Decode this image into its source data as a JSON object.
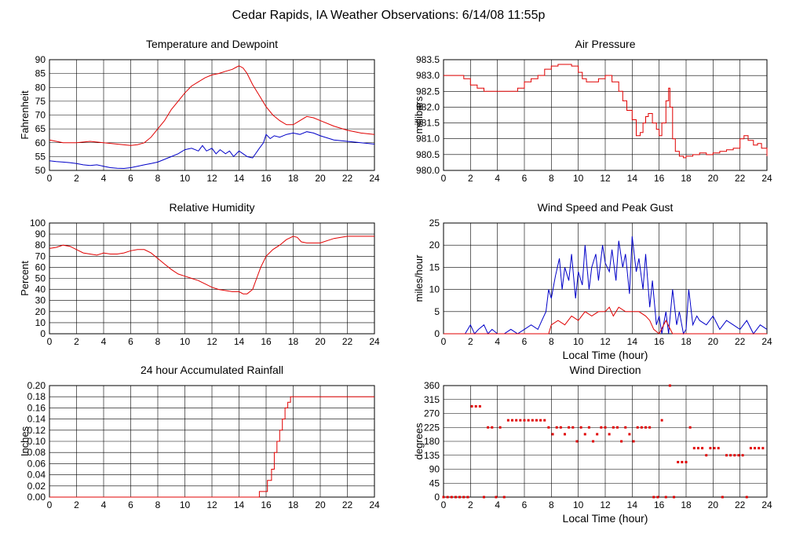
{
  "page_title": "Cedar Rapids, IA Weather Observations: 6/14/08 11:55p",
  "colors": {
    "red": "#e00000",
    "blue": "#0000c8",
    "grid": "#000000",
    "axis": "#000000"
  },
  "chart_data": [
    {
      "id": "temp",
      "type": "line",
      "title": "Temperature and Dewpoint",
      "ylabel": "Fahrenheit",
      "xlabel": "",
      "xlim": [
        0,
        24
      ],
      "ylim": [
        50,
        90
      ],
      "xticks": [
        0,
        2,
        4,
        6,
        8,
        10,
        12,
        14,
        16,
        18,
        20,
        22,
        24
      ],
      "yticks": [
        "50",
        "55",
        "60",
        "65",
        "70",
        "75",
        "80",
        "85",
        "90"
      ],
      "series": [
        {
          "color": "red",
          "step": false,
          "x": [
            0,
            1,
            2,
            3,
            4,
            5,
            6,
            6.5,
            7,
            7.5,
            8,
            8.5,
            9,
            9.5,
            10,
            10.5,
            11,
            11.5,
            12,
            12.5,
            13,
            13.5,
            13.8,
            14,
            14.3,
            14.6,
            15,
            15.5,
            16,
            16.5,
            17,
            17.5,
            18,
            18.5,
            19,
            19.5,
            20,
            21,
            22,
            23,
            24
          ],
          "y": [
            61,
            60,
            60,
            60.5,
            60,
            59.5,
            59,
            59.3,
            60,
            62,
            65,
            68,
            72,
            75,
            78,
            80.5,
            82,
            83.5,
            84.5,
            85,
            85.8,
            86.5,
            87.3,
            87.8,
            87,
            85,
            81,
            77,
            73,
            70,
            68,
            66.5,
            66.5,
            68,
            69.5,
            69,
            68,
            66,
            64.5,
            63.5,
            63
          ]
        },
        {
          "color": "blue",
          "step": false,
          "x": [
            0,
            0.5,
            1,
            1.5,
            2,
            2.5,
            3,
            3.5,
            4,
            4.5,
            5,
            5.5,
            6,
            6.5,
            7,
            7.5,
            8,
            8.5,
            9,
            9.5,
            10,
            10.5,
            11,
            11.3,
            11.6,
            12,
            12.3,
            12.6,
            13,
            13.3,
            13.6,
            14,
            14.3,
            14.6,
            15,
            15.5,
            15.8,
            16,
            16.3,
            16.6,
            17,
            17.5,
            18,
            18.5,
            19,
            19.5,
            20,
            21,
            22,
            23,
            24
          ],
          "y": [
            53.5,
            53.2,
            53,
            52.8,
            52.5,
            52,
            51.8,
            52,
            51.5,
            51,
            50.8,
            50.7,
            51,
            51.5,
            52,
            52.5,
            53,
            54,
            55,
            56,
            57.5,
            58,
            57,
            59,
            57,
            58,
            56,
            57.5,
            56,
            57,
            55,
            57,
            56,
            55,
            54.5,
            58,
            60,
            63,
            61.5,
            62.5,
            62,
            63,
            63.5,
            63,
            64,
            63.5,
            62.5,
            61,
            60.5,
            60,
            59.5
          ]
        }
      ]
    },
    {
      "id": "pres",
      "type": "line",
      "title": "Air Pressure",
      "ylabel": "millibars",
      "xlabel": "",
      "xlim": [
        0,
        24
      ],
      "ylim": [
        980.0,
        983.5
      ],
      "xticks": [
        0,
        2,
        4,
        6,
        8,
        10,
        12,
        14,
        16,
        18,
        20,
        22,
        24
      ],
      "yticks": [
        "980.0",
        "980.5",
        "981.0",
        "981.5",
        "982.0",
        "982.5",
        "983.0",
        "983.5"
      ],
      "series": [
        {
          "color": "red",
          "step": true,
          "x": [
            0,
            0.5,
            1,
            1.5,
            2,
            2.5,
            3,
            3.5,
            4,
            4.5,
            5,
            5.5,
            6,
            6.5,
            7,
            7.5,
            8,
            8.5,
            9,
            9.5,
            10,
            10.3,
            10.6,
            11,
            11.5,
            12,
            12.5,
            13,
            13.3,
            13.6,
            14,
            14.3,
            14.6,
            14.8,
            15,
            15.2,
            15.5,
            15.8,
            16,
            16.2,
            16.5,
            16.7,
            16.8,
            17,
            17.2,
            17.5,
            17.8,
            18,
            18.5,
            19,
            19.5,
            20,
            20.5,
            21,
            21.5,
            22,
            22.3,
            22.6,
            23,
            23.3,
            23.6,
            24
          ],
          "y": [
            983.0,
            983.0,
            983.0,
            982.9,
            982.7,
            982.6,
            982.5,
            982.5,
            982.5,
            982.5,
            982.5,
            982.6,
            982.8,
            982.9,
            983.0,
            983.2,
            983.3,
            983.35,
            983.35,
            983.3,
            983.1,
            982.9,
            982.8,
            982.8,
            982.9,
            983.0,
            982.8,
            982.5,
            982.2,
            981.9,
            981.6,
            981.1,
            981.2,
            981.5,
            981.7,
            981.8,
            981.5,
            981.3,
            981.1,
            981.5,
            982.2,
            982.6,
            982.0,
            981.0,
            980.6,
            980.45,
            980.4,
            980.45,
            980.5,
            980.55,
            980.5,
            980.55,
            980.6,
            980.65,
            980.7,
            981.0,
            981.1,
            980.95,
            980.8,
            980.85,
            980.7,
            980.45
          ]
        }
      ]
    },
    {
      "id": "rh",
      "type": "line",
      "title": "Relative Humidity",
      "ylabel": "Percent",
      "xlabel": "",
      "xlim": [
        0,
        24
      ],
      "ylim": [
        0,
        100
      ],
      "xticks": [
        0,
        2,
        4,
        6,
        8,
        10,
        12,
        14,
        16,
        18,
        20,
        22,
        24
      ],
      "yticks": [
        "0",
        "10",
        "20",
        "30",
        "40",
        "50",
        "60",
        "70",
        "80",
        "90",
        "100"
      ],
      "series": [
        {
          "color": "red",
          "step": false,
          "x": [
            0,
            0.5,
            1,
            1.5,
            2,
            2.5,
            3,
            3.5,
            4,
            4.5,
            5,
            5.5,
            6,
            6.5,
            7,
            7.5,
            8,
            8.5,
            9,
            9.5,
            10,
            10.5,
            11,
            11.5,
            12,
            12.5,
            13,
            13.5,
            14,
            14.3,
            14.6,
            15,
            15.3,
            15.6,
            16,
            16.5,
            17,
            17.5,
            18,
            18.3,
            18.6,
            19,
            20,
            21,
            22,
            23,
            24
          ],
          "y": [
            77,
            78,
            80,
            79,
            76,
            73,
            72,
            71,
            73,
            72,
            72,
            73,
            75,
            76,
            76,
            73,
            68,
            63,
            58,
            54,
            52,
            50,
            48,
            45,
            42,
            40,
            39,
            38,
            38,
            36,
            36,
            40,
            50,
            60,
            70,
            76,
            80,
            85,
            88,
            87,
            83,
            82,
            82,
            86,
            88,
            88,
            88
          ]
        }
      ]
    },
    {
      "id": "wind",
      "type": "line",
      "title": "Wind Speed and Peak Gust",
      "ylabel": "miles/hour",
      "xlabel": "Local Time (hour)",
      "xlim": [
        0,
        24
      ],
      "ylim": [
        0,
        25
      ],
      "xticks": [
        0,
        2,
        4,
        6,
        8,
        10,
        12,
        14,
        16,
        18,
        20,
        22,
        24
      ],
      "yticks": [
        "0",
        "5",
        "10",
        "15",
        "20",
        "25"
      ],
      "series": [
        {
          "color": "blue",
          "step": false,
          "x": [
            0,
            1.6,
            1.8,
            2,
            2.3,
            2.6,
            3,
            3.3,
            3.6,
            4,
            4.5,
            5,
            5.5,
            6,
            6.5,
            7,
            7.3,
            7.6,
            7.8,
            8,
            8.3,
            8.6,
            8.8,
            9,
            9.3,
            9.5,
            9.8,
            10,
            10.3,
            10.5,
            10.8,
            11,
            11.3,
            11.5,
            11.8,
            12,
            12.3,
            12.5,
            12.8,
            13,
            13.3,
            13.5,
            13.8,
            14,
            14.3,
            14.5,
            14.8,
            15,
            15.3,
            15.5,
            15.8,
            16,
            16.2,
            16.5,
            16.7,
            17,
            17.3,
            17.5,
            17.8,
            18,
            18.2,
            18.5,
            18.8,
            19,
            19.5,
            20,
            20.5,
            21,
            21.5,
            22,
            22.5,
            23,
            23.5,
            24
          ],
          "y": [
            0,
            0,
            1,
            2,
            0,
            1,
            2,
            0,
            1,
            0,
            0,
            1,
            0,
            1,
            2,
            1,
            3,
            5,
            10,
            8,
            13,
            17,
            10,
            15,
            12,
            18,
            8,
            14,
            11,
            20,
            10,
            15,
            18,
            12,
            20,
            16,
            14,
            19,
            12,
            21,
            15,
            18,
            9,
            22,
            14,
            17,
            10,
            18,
            6,
            12,
            2,
            4,
            0,
            5,
            0,
            10,
            2,
            5,
            0,
            1,
            10,
            2,
            4,
            3,
            2,
            4,
            1,
            3,
            2,
            1,
            3,
            0,
            2,
            1
          ]
        },
        {
          "color": "red",
          "step": false,
          "x": [
            0,
            7.8,
            8,
            8.5,
            9,
            9.5,
            10,
            10.5,
            11,
            11.5,
            12,
            12.3,
            12.6,
            13,
            13.5,
            14,
            14.5,
            15,
            15.3,
            15.6,
            16,
            16.5,
            17,
            17.5,
            18,
            24
          ],
          "y": [
            0,
            0,
            2,
            3,
            2,
            4,
            3,
            5,
            4,
            5,
            5,
            6,
            4,
            6,
            5,
            5,
            5,
            4,
            3,
            1,
            0,
            3,
            0,
            0,
            0,
            0
          ]
        }
      ]
    },
    {
      "id": "rain",
      "type": "line",
      "title": "24 hour Accumulated Rainfall",
      "ylabel": "Inches",
      "xlabel": "",
      "xlim": [
        0,
        24
      ],
      "ylim": [
        0,
        0.2
      ],
      "xticks": [
        0,
        2,
        4,
        6,
        8,
        10,
        12,
        14,
        16,
        18,
        20,
        22,
        24
      ],
      "yticks": [
        "0.00",
        "0.02",
        "0.04",
        "0.06",
        "0.08",
        "0.10",
        "0.12",
        "0.14",
        "0.16",
        "0.18",
        "0.20"
      ],
      "series": [
        {
          "color": "red",
          "step": true,
          "x": [
            0,
            15.5,
            15.8,
            16.1,
            16.4,
            16.6,
            16.8,
            17,
            17.2,
            17.4,
            17.6,
            17.8,
            18,
            24
          ],
          "y": [
            0,
            0.01,
            0.01,
            0.03,
            0.05,
            0.08,
            0.1,
            0.12,
            0.14,
            0.16,
            0.17,
            0.18,
            0.18,
            0.18
          ]
        }
      ]
    },
    {
      "id": "wdir",
      "type": "scatter",
      "title": "Wind Direction",
      "ylabel": "degrees",
      "xlabel": "Local Time (hour)",
      "xlim": [
        0,
        24
      ],
      "ylim": [
        0,
        360
      ],
      "xticks": [
        0,
        2,
        4,
        6,
        8,
        10,
        12,
        14,
        16,
        18,
        20,
        22,
        24
      ],
      "yticks": [
        "0",
        "45",
        "90",
        "135",
        "180",
        "225",
        "270",
        "315",
        "360"
      ],
      "series": [
        {
          "color": "red",
          "x": [
            0,
            0.3,
            0.6,
            0.9,
            1.2,
            1.5,
            1.8,
            2.1,
            2.4,
            2.7,
            3,
            3.3,
            3.6,
            3.9,
            4.2,
            4.5,
            4.8,
            5.1,
            5.4,
            5.7,
            6,
            6.3,
            6.6,
            6.9,
            7.2,
            7.5,
            7.8,
            8.1,
            8.4,
            8.7,
            9,
            9.3,
            9.6,
            9.9,
            10.2,
            10.5,
            10.8,
            11.1,
            11.4,
            11.7,
            12,
            12.3,
            12.6,
            12.9,
            13.2,
            13.5,
            13.8,
            14.1,
            14.4,
            14.7,
            15,
            15.3,
            15.6,
            15.9,
            16.2,
            16.5,
            16.8,
            17.1,
            17.4,
            17.7,
            18,
            18.3,
            18.6,
            18.9,
            19.2,
            19.5,
            19.8,
            20.1,
            20.4,
            20.7,
            21,
            21.3,
            21.6,
            21.9,
            22.2,
            22.5,
            22.8,
            23.1,
            23.4,
            23.7
          ],
          "y": [
            0,
            0,
            0,
            0,
            0,
            0,
            0,
            293,
            293,
            293,
            0,
            225,
            225,
            0,
            225,
            0,
            248,
            248,
            248,
            248,
            248,
            248,
            248,
            248,
            248,
            248,
            225,
            203,
            225,
            225,
            203,
            225,
            225,
            180,
            225,
            203,
            225,
            180,
            203,
            225,
            225,
            203,
            225,
            225,
            180,
            225,
            203,
            180,
            225,
            225,
            225,
            225,
            0,
            0,
            248,
            0,
            360,
            0,
            113,
            113,
            113,
            225,
            158,
            158,
            158,
            135,
            158,
            158,
            158,
            0,
            135,
            135,
            135,
            135,
            135,
            0,
            158,
            158,
            158,
            158
          ]
        }
      ]
    }
  ]
}
